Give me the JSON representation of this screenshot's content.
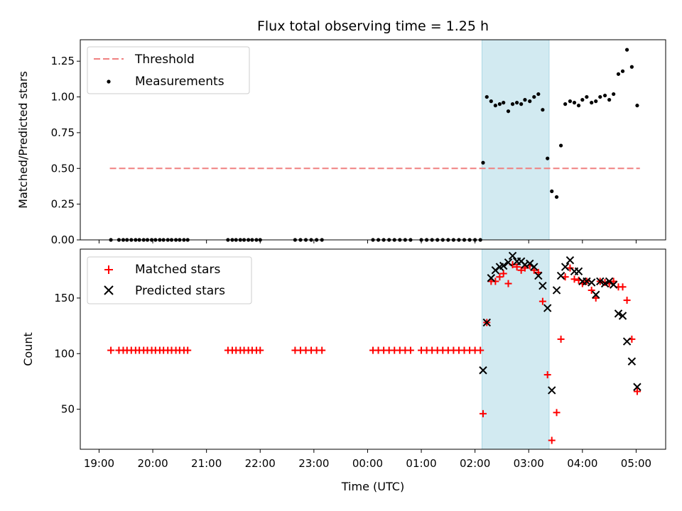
{
  "chart_data": [
    {
      "type": "scatter",
      "title": "Flux total observing time = 1.25 h",
      "ylabel": "Matched/Predicted stars",
      "xlabel": "",
      "x_unit": "hours since 19:00 UTC",
      "xlim": [
        -0.35,
        10.55
      ],
      "ylim": [
        0,
        1.4
      ],
      "yticks": [
        0.0,
        0.25,
        0.5,
        0.75,
        1.0,
        1.25
      ],
      "ytick_labels": [
        "0.00",
        "0.25",
        "0.50",
        "0.75",
        "1.00",
        "1.25"
      ],
      "shaded_region": [
        7.13,
        8.38
      ],
      "shade_color": "#add8e6",
      "legend_position": "upper-left",
      "series": [
        {
          "name": "Threshold",
          "kind": "line",
          "style": "dashed",
          "color": "#f08080",
          "points": [
            [
              0.2,
              0.5
            ],
            [
              10.07,
              0.5
            ]
          ]
        },
        {
          "name": "Measurements",
          "kind": "scatter",
          "marker": "dot",
          "color": "#000000",
          "points": [
            [
              0.22,
              0
            ],
            [
              0.37,
              0
            ],
            [
              0.45,
              0
            ],
            [
              0.52,
              0
            ],
            [
              0.6,
              0
            ],
            [
              0.68,
              0
            ],
            [
              0.75,
              0
            ],
            [
              0.83,
              0
            ],
            [
              0.9,
              0
            ],
            [
              0.98,
              0
            ],
            [
              1.05,
              0
            ],
            [
              1.13,
              0
            ],
            [
              1.2,
              0
            ],
            [
              1.28,
              0
            ],
            [
              1.35,
              0
            ],
            [
              1.43,
              0
            ],
            [
              1.5,
              0
            ],
            [
              1.58,
              0
            ],
            [
              1.65,
              0
            ],
            [
              2.4,
              0
            ],
            [
              2.48,
              0
            ],
            [
              2.55,
              0
            ],
            [
              2.63,
              0
            ],
            [
              2.7,
              0
            ],
            [
              2.78,
              0
            ],
            [
              2.85,
              0
            ],
            [
              2.93,
              0
            ],
            [
              3.0,
              0
            ],
            [
              3.65,
              0
            ],
            [
              3.75,
              0
            ],
            [
              3.85,
              0
            ],
            [
              3.95,
              0
            ],
            [
              4.05,
              0
            ],
            [
              4.15,
              0
            ],
            [
              5.1,
              0
            ],
            [
              5.2,
              0
            ],
            [
              5.3,
              0
            ],
            [
              5.4,
              0
            ],
            [
              5.5,
              0
            ],
            [
              5.6,
              0
            ],
            [
              5.7,
              0
            ],
            [
              5.8,
              0
            ],
            [
              6.0,
              0
            ],
            [
              6.1,
              0
            ],
            [
              6.2,
              0
            ],
            [
              6.3,
              0
            ],
            [
              6.4,
              0
            ],
            [
              6.5,
              0
            ],
            [
              6.6,
              0
            ],
            [
              6.7,
              0
            ],
            [
              6.8,
              0
            ],
            [
              6.9,
              0
            ],
            [
              7.0,
              0
            ],
            [
              7.1,
              0
            ],
            [
              7.15,
              0.54
            ],
            [
              7.22,
              1.0
            ],
            [
              7.3,
              0.97
            ],
            [
              7.38,
              0.94
            ],
            [
              7.46,
              0.95
            ],
            [
              7.53,
              0.96
            ],
            [
              7.62,
              0.9
            ],
            [
              7.7,
              0.95
            ],
            [
              7.78,
              0.96
            ],
            [
              7.86,
              0.95
            ],
            [
              7.93,
              0.98
            ],
            [
              8.02,
              0.97
            ],
            [
              8.1,
              1.0
            ],
            [
              8.18,
              1.02
            ],
            [
              8.26,
              0.91
            ],
            [
              8.35,
              0.57
            ],
            [
              8.43,
              0.34
            ],
            [
              8.52,
              0.3
            ],
            [
              8.6,
              0.66
            ],
            [
              8.68,
              0.95
            ],
            [
              8.77,
              0.97
            ],
            [
              8.85,
              0.96
            ],
            [
              8.93,
              0.94
            ],
            [
              9.0,
              0.98
            ],
            [
              9.08,
              1.0
            ],
            [
              9.17,
              0.96
            ],
            [
              9.25,
              0.97
            ],
            [
              9.33,
              1.0
            ],
            [
              9.42,
              1.01
            ],
            [
              9.5,
              0.98
            ],
            [
              9.58,
              1.02
            ],
            [
              9.67,
              1.16
            ],
            [
              9.75,
              1.18
            ],
            [
              9.83,
              1.33
            ],
            [
              9.92,
              1.21
            ],
            [
              10.02,
              0.94
            ]
          ]
        }
      ]
    },
    {
      "type": "scatter",
      "title": "",
      "ylabel": "Count",
      "xlabel": "Time (UTC)",
      "x_unit": "hours since 19:00 UTC",
      "xlim": [
        -0.35,
        10.55
      ],
      "ylim": [
        14,
        194
      ],
      "yticks": [
        50,
        100,
        150
      ],
      "ytick_labels": [
        "50",
        "100",
        "150"
      ],
      "xticks": [
        0,
        1,
        2,
        3,
        4,
        5,
        6,
        7,
        8,
        9,
        10
      ],
      "xtick_labels": [
        "19:00",
        "20:00",
        "21:00",
        "22:00",
        "23:00",
        "00:00",
        "01:00",
        "02:00",
        "03:00",
        "04:00",
        "05:00"
      ],
      "shaded_region": [
        7.13,
        8.38
      ],
      "shade_color": "#add8e6",
      "legend_position": "upper-left",
      "series": [
        {
          "name": "Matched stars",
          "kind": "scatter",
          "marker": "plus",
          "color": "#ff0000",
          "points": [
            [
              0.22,
              103
            ],
            [
              0.37,
              103
            ],
            [
              0.45,
              103
            ],
            [
              0.52,
              103
            ],
            [
              0.6,
              103
            ],
            [
              0.68,
              103
            ],
            [
              0.75,
              103
            ],
            [
              0.83,
              103
            ],
            [
              0.9,
              103
            ],
            [
              0.98,
              103
            ],
            [
              1.05,
              103
            ],
            [
              1.13,
              103
            ],
            [
              1.2,
              103
            ],
            [
              1.28,
              103
            ],
            [
              1.35,
              103
            ],
            [
              1.43,
              103
            ],
            [
              1.5,
              103
            ],
            [
              1.58,
              103
            ],
            [
              1.65,
              103
            ],
            [
              2.4,
              103
            ],
            [
              2.48,
              103
            ],
            [
              2.55,
              103
            ],
            [
              2.63,
              103
            ],
            [
              2.7,
              103
            ],
            [
              2.78,
              103
            ],
            [
              2.85,
              103
            ],
            [
              2.93,
              103
            ],
            [
              3.0,
              103
            ],
            [
              3.65,
              103
            ],
            [
              3.75,
              103
            ],
            [
              3.85,
              103
            ],
            [
              3.95,
              103
            ],
            [
              4.05,
              103
            ],
            [
              4.15,
              103
            ],
            [
              5.1,
              103
            ],
            [
              5.2,
              103
            ],
            [
              5.3,
              103
            ],
            [
              5.4,
              103
            ],
            [
              5.5,
              103
            ],
            [
              5.6,
              103
            ],
            [
              5.7,
              103
            ],
            [
              5.8,
              103
            ],
            [
              6.0,
              103
            ],
            [
              6.1,
              103
            ],
            [
              6.2,
              103
            ],
            [
              6.3,
              103
            ],
            [
              6.4,
              103
            ],
            [
              6.5,
              103
            ],
            [
              6.6,
              103
            ],
            [
              6.7,
              103
            ],
            [
              6.8,
              103
            ],
            [
              6.9,
              103
            ],
            [
              7.0,
              103
            ],
            [
              7.1,
              103
            ],
            [
              7.15,
              46
            ],
            [
              7.22,
              128
            ],
            [
              7.3,
              165
            ],
            [
              7.38,
              165
            ],
            [
              7.46,
              169
            ],
            [
              7.53,
              172
            ],
            [
              7.62,
              163
            ],
            [
              7.7,
              180
            ],
            [
              7.78,
              178
            ],
            [
              7.86,
              175
            ],
            [
              7.93,
              177
            ],
            [
              8.02,
              179
            ],
            [
              8.1,
              175
            ],
            [
              8.18,
              173
            ],
            [
              8.26,
              147
            ],
            [
              8.35,
              81
            ],
            [
              8.43,
              22
            ],
            [
              8.52,
              47
            ],
            [
              8.6,
              113
            ],
            [
              8.68,
              169
            ],
            [
              8.77,
              177
            ],
            [
              8.85,
              167
            ],
            [
              8.93,
              166
            ],
            [
              9.0,
              163
            ],
            [
              9.08,
              165
            ],
            [
              9.17,
              157
            ],
            [
              9.25,
              150
            ],
            [
              9.33,
              165
            ],
            [
              9.42,
              164
            ],
            [
              9.5,
              163
            ],
            [
              9.58,
              165
            ],
            [
              9.67,
              160
            ],
            [
              9.75,
              160
            ],
            [
              9.83,
              148
            ],
            [
              9.92,
              113
            ],
            [
              10.02,
              66
            ]
          ]
        },
        {
          "name": "Predicted stars",
          "kind": "scatter",
          "marker": "x",
          "color": "#000000",
          "points": [
            [
              7.15,
              85
            ],
            [
              7.22,
              128
            ],
            [
              7.3,
              168
            ],
            [
              7.38,
              175
            ],
            [
              7.46,
              178
            ],
            [
              7.53,
              179
            ],
            [
              7.62,
              182
            ],
            [
              7.7,
              188
            ],
            [
              7.78,
              183
            ],
            [
              7.86,
              183
            ],
            [
              7.93,
              180
            ],
            [
              8.02,
              181
            ],
            [
              8.1,
              178
            ],
            [
              8.18,
              170
            ],
            [
              8.26,
              161
            ],
            [
              8.35,
              141
            ],
            [
              8.43,
              67
            ],
            [
              8.52,
              157
            ],
            [
              8.6,
              170
            ],
            [
              8.68,
              178
            ],
            [
              8.77,
              184
            ],
            [
              8.85,
              174
            ],
            [
              8.93,
              174
            ],
            [
              9.0,
              165
            ],
            [
              9.08,
              165
            ],
            [
              9.17,
              164
            ],
            [
              9.25,
              153
            ],
            [
              9.33,
              165
            ],
            [
              9.42,
              163
            ],
            [
              9.5,
              165
            ],
            [
              9.58,
              162
            ],
            [
              9.67,
              136
            ],
            [
              9.75,
              134
            ],
            [
              9.83,
              111
            ],
            [
              9.92,
              93
            ],
            [
              10.02,
              70
            ]
          ]
        }
      ]
    }
  ]
}
